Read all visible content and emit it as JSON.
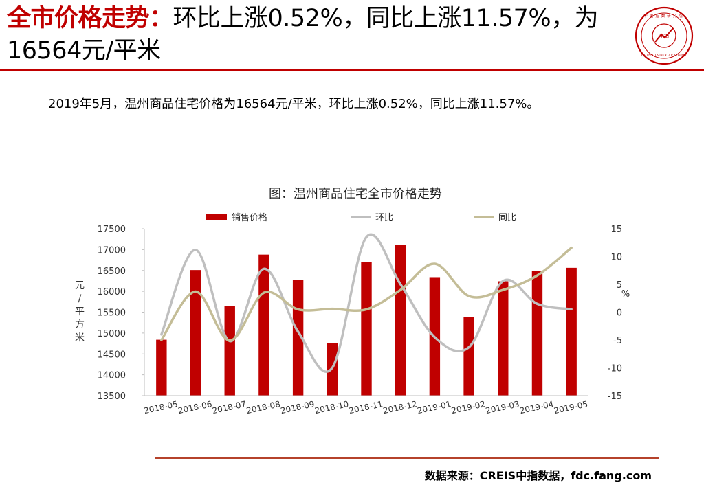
{
  "title": {
    "highlight": "全市价格走势：",
    "rest": "环比上涨0.52%，同比上涨11.57%，为16564元/平米"
  },
  "logo": {
    "text": "CHINA INDEX ACADEMY",
    "cn_text": "中国指数研究院",
    "center": "中指",
    "color": "#c00000"
  },
  "summary": "2019年5月，温州商品住宅价格为16564元/平米，环比上涨0.52%，同比上涨11.57%。",
  "chart_data": {
    "type": "bar",
    "title": "图：温州商品住宅全市价格走势",
    "categories": [
      "2018-05",
      "2018-06",
      "2018-07",
      "2018-08",
      "2018-09",
      "2018-10",
      "2018-11",
      "2018-12",
      "2019-01",
      "2019-02",
      "2019-03",
      "2019-04",
      "2019-05"
    ],
    "series": [
      {
        "name": "销售价格",
        "type": "bar",
        "axis": "left",
        "color": "#c00000",
        "values": [
          14840,
          16510,
          15650,
          16880,
          16280,
          14760,
          16700,
          17110,
          16340,
          15380,
          16240,
          16480,
          16564
        ]
      },
      {
        "name": "环比",
        "type": "line",
        "axis": "right",
        "color": "#bfbfbf",
        "values": [
          -4.0,
          11.2,
          -5.2,
          7.8,
          -3.5,
          -10.0,
          13.5,
          5.0,
          -4.5,
          -6.3,
          5.6,
          1.5,
          0.52
        ]
      },
      {
        "name": "同比",
        "type": "line",
        "axis": "right",
        "color": "#c4bd97",
        "values": [
          -5.0,
          3.7,
          -5.1,
          3.5,
          0.5,
          0.6,
          0.5,
          4.0,
          8.7,
          2.9,
          4.0,
          6.6,
          11.57
        ]
      }
    ],
    "ylabel": "元/平方米",
    "y2label": "%",
    "ylim": [
      13500,
      17500
    ],
    "y2lim": [
      -15,
      15
    ],
    "yticks": [
      "13500",
      "14000",
      "14500",
      "15000",
      "15500",
      "16000",
      "16500",
      "17000",
      "17500"
    ],
    "y2ticks": [
      "-15",
      "-10",
      "-5",
      "0",
      "5",
      "10",
      "15"
    ],
    "legend_position": "top",
    "grid": false
  },
  "source": "数据来源：CREIS中指数据，fdc.fang.com"
}
